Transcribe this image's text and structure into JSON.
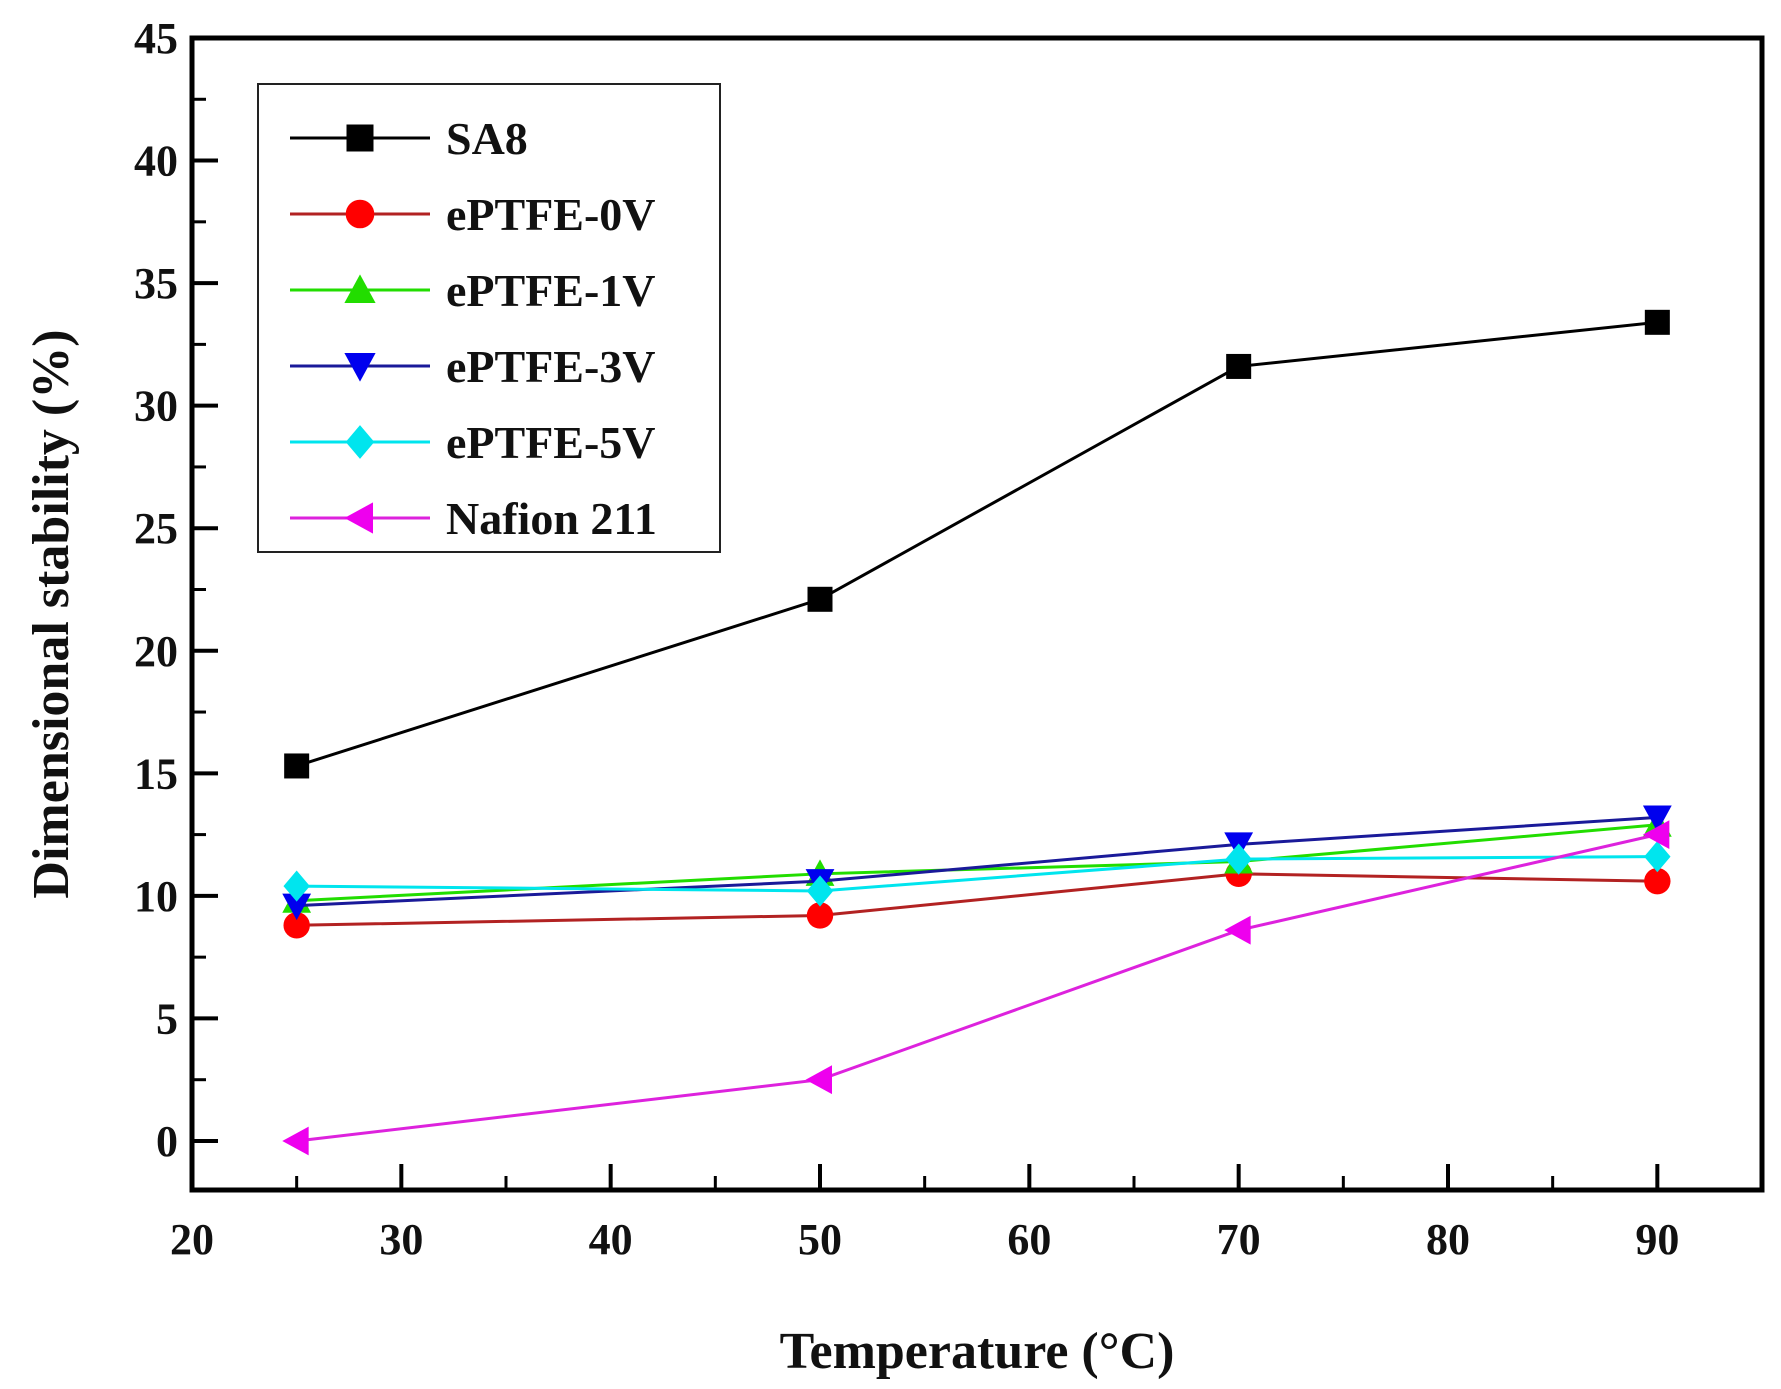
{
  "chart_data": {
    "type": "line",
    "xlabel": "Temperature (°C)",
    "ylabel": "Dimensional stability (%)",
    "xlim": [
      20,
      95
    ],
    "ylim": [
      -2,
      45
    ],
    "xticks": [
      20,
      30,
      40,
      50,
      60,
      70,
      80,
      90
    ],
    "yticks": [
      0,
      5,
      10,
      15,
      20,
      25,
      30,
      35,
      40,
      45
    ],
    "legend_position": "top-left",
    "x": [
      25,
      50,
      70,
      90
    ],
    "series": [
      {
        "name": "SA8",
        "values": [
          15.3,
          22.1,
          31.6,
          33.4
        ],
        "color": "#000000",
        "marker": "square"
      },
      {
        "name": "ePTFE-0V",
        "values": [
          8.8,
          9.2,
          10.9,
          10.6
        ],
        "color": "#ff0000",
        "line_color": "#b22222",
        "marker": "circle"
      },
      {
        "name": "ePTFE-1V",
        "values": [
          9.8,
          10.9,
          11.4,
          12.9
        ],
        "color": "#22dd00",
        "marker": "triangle-up"
      },
      {
        "name": "ePTFE-3V",
        "values": [
          9.6,
          10.6,
          12.1,
          13.2
        ],
        "color": "#0000ee",
        "line_color": "#1a1a99",
        "marker": "triangle-down"
      },
      {
        "name": "ePTFE-5V",
        "values": [
          10.4,
          10.2,
          11.5,
          11.6
        ],
        "color": "#00e5ee",
        "marker": "diamond"
      },
      {
        "name": "Nafion 211",
        "values": [
          0.0,
          2.5,
          8.6,
          12.5
        ],
        "color": "#ee00ee",
        "line_color": "#dd22dd",
        "marker": "triangle-left"
      }
    ]
  }
}
